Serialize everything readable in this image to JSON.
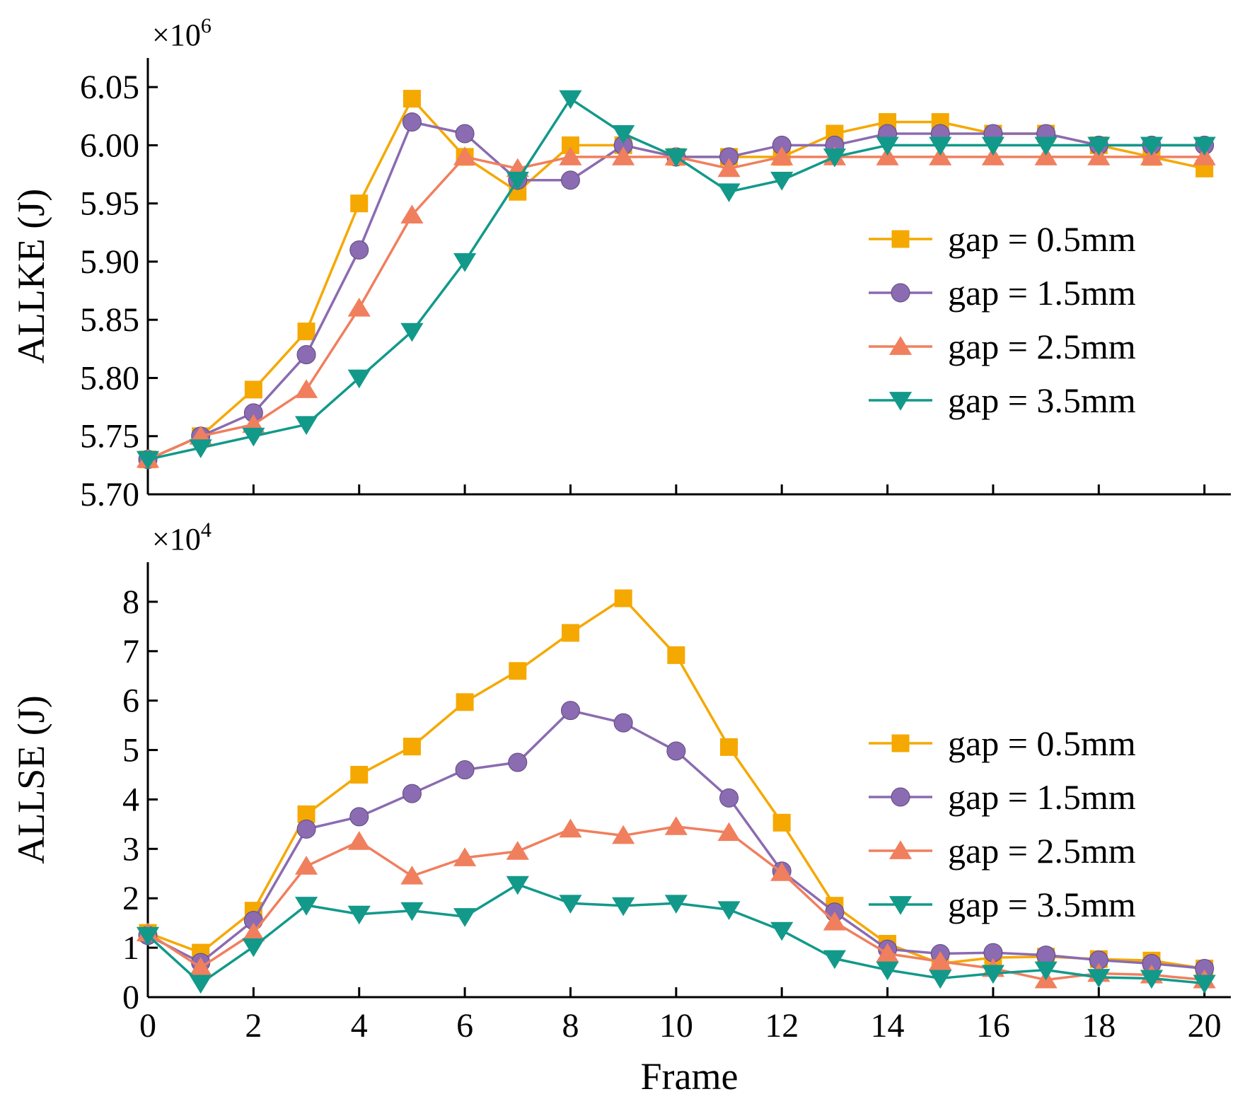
{
  "colors": {
    "axis": "#000000",
    "series": [
      "#F5A800",
      "#8B6BB1",
      "#F07F5E",
      "#12998A"
    ]
  },
  "chart_data": [
    {
      "type": "line",
      "id": "ke",
      "title": "",
      "xlabel": "",
      "ylabel": "ALLKE (J)",
      "multiplier_label": "×10",
      "multiplier_exp": "6",
      "xlim": [
        0,
        20.5
      ],
      "ylim": [
        5.7,
        6.075
      ],
      "xticks": [
        0,
        2,
        4,
        6,
        8,
        10,
        12,
        14,
        16,
        18,
        20
      ],
      "show_x_tick_labels": false,
      "yticks": [
        5.7,
        5.75,
        5.8,
        5.85,
        5.9,
        5.95,
        6.0,
        6.05
      ],
      "ytick_labels": [
        "5.70",
        "5.75",
        "5.80",
        "5.85",
        "5.90",
        "5.95",
        "6.00",
        "6.05"
      ],
      "legend_position": "right",
      "x": [
        0,
        1,
        2,
        3,
        4,
        5,
        6,
        7,
        8,
        9,
        10,
        11,
        12,
        13,
        14,
        15,
        16,
        17,
        18,
        19,
        20
      ],
      "series": [
        {
          "name": "gap = 0.5mm",
          "marker": "square",
          "values": [
            5.73,
            5.75,
            5.79,
            5.84,
            5.95,
            6.04,
            5.99,
            5.96,
            6.0,
            6.0,
            5.99,
            5.99,
            5.99,
            6.01,
            6.02,
            6.02,
            6.01,
            6.01,
            6.0,
            5.99,
            5.98
          ]
        },
        {
          "name": "gap = 1.5mm",
          "marker": "circle",
          "values": [
            5.73,
            5.75,
            5.77,
            5.82,
            5.91,
            6.02,
            6.01,
            5.97,
            5.97,
            6.0,
            5.99,
            5.99,
            6.0,
            6.0,
            6.01,
            6.01,
            6.01,
            6.01,
            6.0,
            6.0,
            6.0
          ]
        },
        {
          "name": "gap = 2.5mm",
          "marker": "triangle-up",
          "values": [
            5.73,
            5.75,
            5.76,
            5.79,
            5.86,
            5.94,
            5.99,
            5.98,
            5.99,
            5.99,
            5.99,
            5.98,
            5.99,
            5.99,
            5.99,
            5.99,
            5.99,
            5.99,
            5.99,
            5.99,
            5.99
          ]
        },
        {
          "name": "gap = 3.5mm",
          "marker": "triangle-down",
          "values": [
            5.73,
            5.74,
            5.75,
            5.76,
            5.8,
            5.84,
            5.9,
            5.97,
            6.04,
            6.01,
            5.99,
            5.96,
            5.97,
            5.99,
            6.0,
            6.0,
            6.0,
            6.0,
            6.0,
            6.0,
            6.0
          ]
        }
      ]
    },
    {
      "type": "line",
      "id": "se",
      "title": "",
      "xlabel": "Frame",
      "ylabel": "ALLSE (J)",
      "multiplier_label": "×10",
      "multiplier_exp": "4",
      "xlim": [
        0,
        20.5
      ],
      "ylim": [
        0,
        8.8
      ],
      "xticks": [
        0,
        2,
        4,
        6,
        8,
        10,
        12,
        14,
        16,
        18,
        20
      ],
      "show_x_tick_labels": true,
      "yticks": [
        0,
        1,
        2,
        3,
        4,
        5,
        6,
        7,
        8
      ],
      "ytick_labels": [
        "0",
        "1",
        "2",
        "3",
        "4",
        "5",
        "6",
        "7",
        "8"
      ],
      "legend_position": "right",
      "x": [
        0,
        1,
        2,
        3,
        4,
        5,
        6,
        7,
        8,
        9,
        10,
        11,
        12,
        13,
        14,
        15,
        16,
        17,
        18,
        19,
        20
      ],
      "series": [
        {
          "name": "gap = 0.5mm",
          "marker": "square",
          "values": [
            1.3,
            0.9,
            1.75,
            3.7,
            4.5,
            5.07,
            5.97,
            6.6,
            7.37,
            8.07,
            6.92,
            5.06,
            3.53,
            1.85,
            1.08,
            0.68,
            0.8,
            0.82,
            0.77,
            0.74,
            0.58
          ]
        },
        {
          "name": "gap = 1.5mm",
          "marker": "circle",
          "values": [
            1.25,
            0.7,
            1.55,
            3.4,
            3.65,
            4.12,
            4.6,
            4.75,
            5.8,
            5.55,
            4.98,
            4.03,
            2.55,
            1.72,
            0.97,
            0.88,
            0.9,
            0.85,
            0.75,
            0.68,
            0.58
          ]
        },
        {
          "name": "gap = 2.5mm",
          "marker": "triangle-up",
          "values": [
            1.3,
            0.6,
            1.3,
            2.65,
            3.15,
            2.45,
            2.82,
            2.95,
            3.4,
            3.27,
            3.45,
            3.33,
            2.52,
            1.52,
            0.88,
            0.72,
            0.58,
            0.35,
            0.48,
            0.45,
            0.35
          ]
        },
        {
          "name": "gap = 3.5mm",
          "marker": "triangle-down",
          "values": [
            1.25,
            0.28,
            1.02,
            1.86,
            1.68,
            1.75,
            1.63,
            2.28,
            1.9,
            1.85,
            1.9,
            1.77,
            1.35,
            0.78,
            0.55,
            0.38,
            0.48,
            0.55,
            0.4,
            0.38,
            0.28
          ]
        }
      ]
    }
  ]
}
